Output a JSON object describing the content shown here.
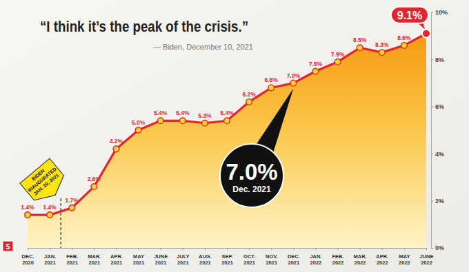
{
  "chart_data": {
    "type": "line",
    "title": "“I think it’s the peak of the crisis.”",
    "subtitle": "— Biden, December 10, 2021",
    "categories": [
      "DEC. 2020",
      "JAN. 2021",
      "FEB. 2021",
      "MAR. 2021",
      "APR. 2021",
      "MAY 2021",
      "JUNE 2021",
      "JULY 2021",
      "AUG. 2021",
      "SEP. 2021",
      "OCT. 2021",
      "NOV. 2021",
      "DEC. 2021",
      "JAN. 2022",
      "FEB. 2022",
      "MAR. 2022",
      "APR. 2022",
      "MAY 2022",
      "JUNE 2022"
    ],
    "values": [
      1.4,
      1.4,
      1.7,
      2.6,
      4.2,
      5.0,
      5.4,
      5.4,
      5.3,
      5.4,
      6.2,
      6.8,
      7.0,
      7.5,
      7.9,
      8.5,
      8.3,
      8.6,
      9.1
    ],
    "value_labels": [
      "1.4%",
      "1.4%",
      "1.7%",
      "2.6%",
      "4.2%",
      "5.0%",
      "5.4%",
      "5.4%",
      "5.3%",
      "5.4%",
      "6.2%",
      "6.8%",
      "7.0%",
      "7.5%",
      "7.9%",
      "8.5%",
      "8.3%",
      "8.6%",
      "9.1%"
    ],
    "color": "#e3262d",
    "marker": "circle",
    "data_labels": true,
    "ylim": [
      0,
      10
    ],
    "yticks": [
      {
        "value": 0,
        "label": "0%"
      },
      {
        "value": 2,
        "label": "2%"
      },
      {
        "value": 4,
        "label": "4%"
      },
      {
        "value": 6,
        "label": "6%"
      },
      {
        "value": 8,
        "label": "8%"
      },
      {
        "value": 10,
        "label": "10%"
      }
    ],
    "annotations": [
      {
        "text": [
          "BIDEN",
          "INAUGURATED",
          "JAN. 20, 2021"
        ],
        "category": "JAN. 2021"
      },
      {
        "text": [
          "7.0%",
          "Dec. 2021"
        ],
        "category": "DEC. 2021"
      }
    ],
    "badge": "5"
  }
}
